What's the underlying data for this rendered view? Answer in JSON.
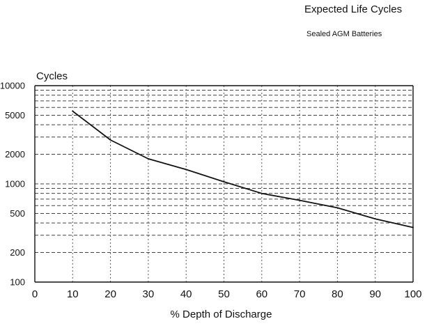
{
  "chart_data": {
    "type": "line",
    "title": "Expected Life Cycles",
    "subtitle": "Sealed AGM Batteries",
    "ylabel": "Cycles",
    "xlabel": "% Depth of Discharge",
    "x_scale": "linear",
    "y_scale": "log",
    "xlim": [
      0,
      100
    ],
    "ylim": [
      100,
      10000
    ],
    "x_ticks": [
      0,
      10,
      20,
      30,
      40,
      50,
      60,
      70,
      80,
      90,
      100
    ],
    "y_tick_labels": [
      {
        "value": 100,
        "label": "100"
      },
      {
        "value": 200,
        "label": "200"
      },
      {
        "value": 500,
        "label": "500"
      },
      {
        "value": 1000,
        "label": "1000"
      },
      {
        "value": 2000,
        "label": "2000"
      },
      {
        "value": 5000,
        "label": "5000"
      },
      {
        "value": 10000,
        "label": "10000"
      }
    ],
    "y_gridlines": [
      100,
      200,
      300,
      400,
      500,
      600,
      700,
      800,
      900,
      1000,
      2000,
      3000,
      4000,
      5000,
      6000,
      7000,
      8000,
      9000,
      10000
    ],
    "grid": true,
    "legend": "none",
    "series": [
      {
        "color": "#111111",
        "x": [
          10,
          20,
          30,
          40,
          50,
          60,
          70,
          80,
          90,
          100
        ],
        "y": [
          5500,
          2800,
          1800,
          1400,
          1050,
          800,
          680,
          570,
          440,
          360
        ]
      }
    ]
  }
}
